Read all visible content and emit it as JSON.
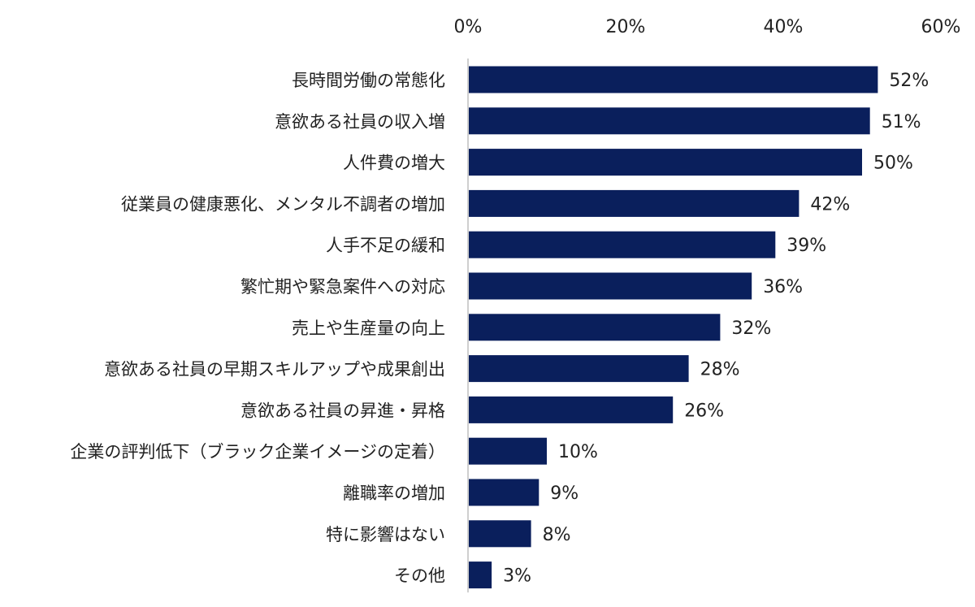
{
  "chart_data": {
    "type": "bar",
    "orientation": "horizontal",
    "title": "",
    "xlabel": "",
    "ylabel": "",
    "xlim": [
      0,
      60
    ],
    "ticks": [
      0,
      20,
      40,
      60
    ],
    "tick_labels": [
      "0%",
      "20%",
      "40%",
      "60%"
    ],
    "tick_position": "top",
    "grid": false,
    "bar_color": "#0a1f5c",
    "axis_color": "#bfbfbf",
    "categories": [
      "長時間労働の常態化",
      "意欲ある社員の収入増",
      "人件費の増大",
      "従業員の健康悪化、メンタル不調者の増加",
      "人手不足の緩和",
      "繁忙期や緊急案件への対応",
      "売上や生産量の向上",
      "意欲ある社員の早期スキルアップや成果創出",
      "意欲ある社員の昇進・昇格",
      "企業の評判低下（ブラック企業イメージの定着）",
      "離職率の増加",
      "特に影響はない",
      "その他"
    ],
    "values": [
      52,
      51,
      50,
      42,
      39,
      36,
      32,
      28,
      26,
      10,
      9,
      8,
      3
    ],
    "value_labels": [
      "52%",
      "51%",
      "50%",
      "42%",
      "39%",
      "36%",
      "32%",
      "28%",
      "26%",
      "10%",
      "9%",
      "8%",
      "3%"
    ]
  }
}
